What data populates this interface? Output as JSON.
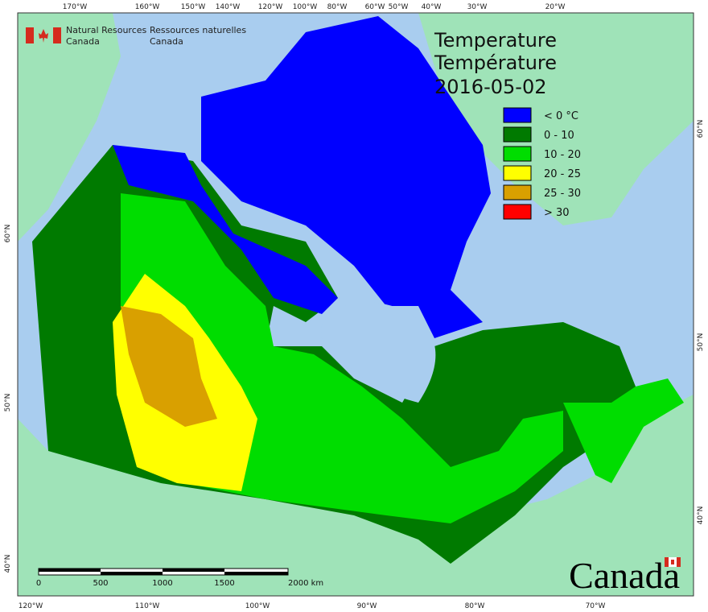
{
  "header": {
    "agency_en": [
      "Natural Resources",
      "Canada"
    ],
    "agency_fr": [
      "Ressources naturelles",
      "Canada"
    ]
  },
  "title": {
    "en": "Temperature",
    "fr": "Température",
    "date": "2016-05-02"
  },
  "legend": [
    {
      "label": "< 0 °C",
      "color": "#0000ff"
    },
    {
      "label": "0 - 10",
      "color": "#007a00"
    },
    {
      "label": "10 - 20",
      "color": "#00dd00"
    },
    {
      "label": "20 - 25",
      "color": "#ffff00"
    },
    {
      "label": "25 - 30",
      "color": "#d9a000"
    },
    {
      "label": "> 30",
      "color": "#ff0000"
    }
  ],
  "graticule": {
    "top": [
      "170°W",
      "160°W",
      "150°W",
      "140°W",
      "120°W",
      "100°W",
      "80°W",
      "60°W",
      "50°W",
      "40°W",
      "30°W",
      "20°W"
    ],
    "bottom": [
      "120°W",
      "110°W",
      "100°W",
      "90°W",
      "80°W",
      "70°W"
    ],
    "left": [
      "60°N",
      "50°N",
      "40°N"
    ],
    "right": [
      "60°N",
      "50°N",
      "40°N"
    ]
  },
  "scale_bar": {
    "labels": [
      "0",
      "500",
      "1000",
      "1500",
      "2000  km"
    ]
  },
  "wordmark": "Canada"
}
